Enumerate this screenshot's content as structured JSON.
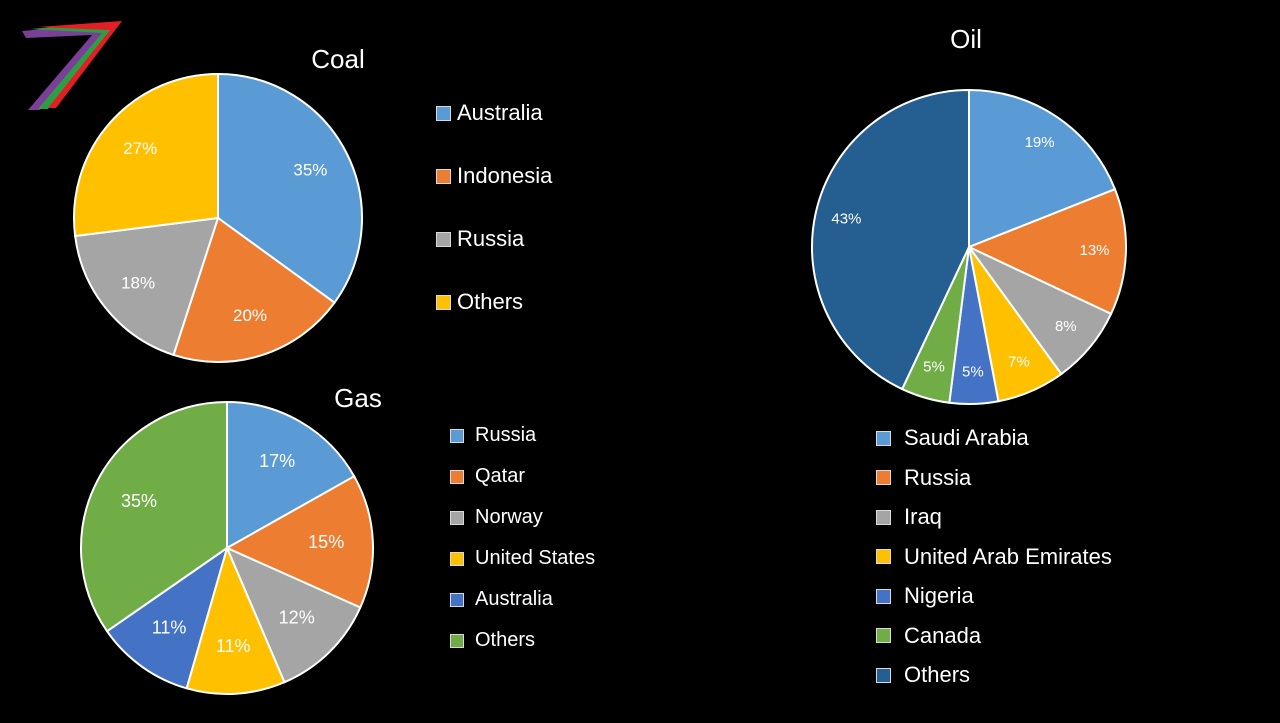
{
  "colors": {
    "background": "#000000",
    "blue": "#5b9bd5",
    "orange": "#ed7d31",
    "gray": "#a5a5a5",
    "gold": "#ffc000",
    "darkblue": "#4472c4",
    "green": "#70ad47",
    "navy": "#255e91",
    "slice_border": "#ffffff"
  },
  "logo": {
    "icon": "stripes-7-logo-icon",
    "colors": [
      "#7b3f98",
      "#2e9e45",
      "#e31e24"
    ]
  },
  "chart_data": [
    {
      "type": "pie",
      "title": "Coal",
      "categories": [
        "Australia",
        "Indonesia",
        "Russia",
        "Others"
      ],
      "values": [
        35,
        20,
        18,
        27
      ],
      "labels": [
        "35%",
        "20%",
        "18%",
        "27%"
      ],
      "colors": [
        "#5b9bd5",
        "#ed7d31",
        "#a5a5a5",
        "#ffc000"
      ],
      "legend": "right"
    },
    {
      "type": "pie",
      "title": "Gas",
      "categories": [
        "Russia",
        "Qatar",
        "Norway",
        "United States",
        "Australia",
        "Others"
      ],
      "values": [
        17,
        15,
        12,
        11,
        11,
        35
      ],
      "labels": [
        "17%",
        "15%",
        "12%",
        "11%",
        "11%",
        "35%"
      ],
      "colors": [
        "#5b9bd5",
        "#ed7d31",
        "#a5a5a5",
        "#ffc000",
        "#4472c4",
        "#70ad47"
      ],
      "legend": "right"
    },
    {
      "type": "pie",
      "title": "Oil",
      "categories": [
        "Saudi Arabia",
        "Russia",
        "Iraq",
        "United Arab Emirates",
        "Nigeria",
        "Canada",
        "Others"
      ],
      "values": [
        19,
        13,
        8,
        7,
        5,
        5,
        43
      ],
      "labels": [
        "19%",
        "13%",
        "8%",
        "7%",
        "5%",
        "5%",
        "43%"
      ],
      "colors": [
        "#5b9bd5",
        "#ed7d31",
        "#a5a5a5",
        "#ffc000",
        "#4472c4",
        "#70ad47",
        "#255e91"
      ],
      "legend": "bottom"
    }
  ]
}
